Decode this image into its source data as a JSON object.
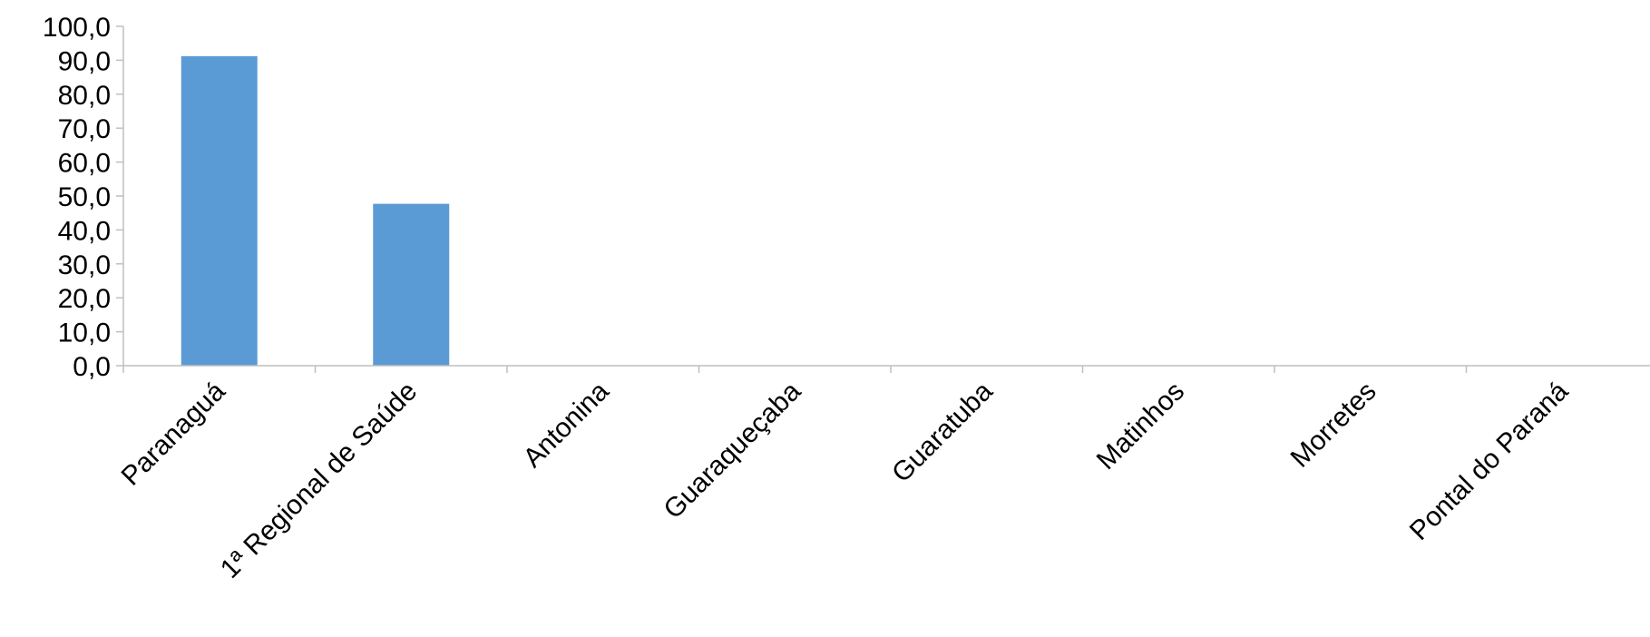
{
  "chart_data": {
    "type": "bar",
    "title": "",
    "xlabel": "",
    "ylabel": "",
    "categories": [
      "Paranaguá",
      "1ª Regional de Saúde",
      "Antonina",
      "Guaraqueçaba",
      "Guaratuba",
      "Matinhos",
      "Morretes",
      "Pontal do Paraná"
    ],
    "values": [
      91.2,
      47.7,
      0,
      0,
      0,
      0,
      0,
      0
    ],
    "ylim": [
      0,
      100
    ],
    "yticks": [
      "0,0",
      "10,0",
      "20,0",
      "30,0",
      "40,0",
      "50,0",
      "60,0",
      "70,0",
      "80,0",
      "90,0",
      "100,0"
    ],
    "grid": false,
    "legend": "none",
    "colors": {
      "bar": "#5b9bd5",
      "axis": "#bfbfbf",
      "text": "#000000"
    }
  }
}
